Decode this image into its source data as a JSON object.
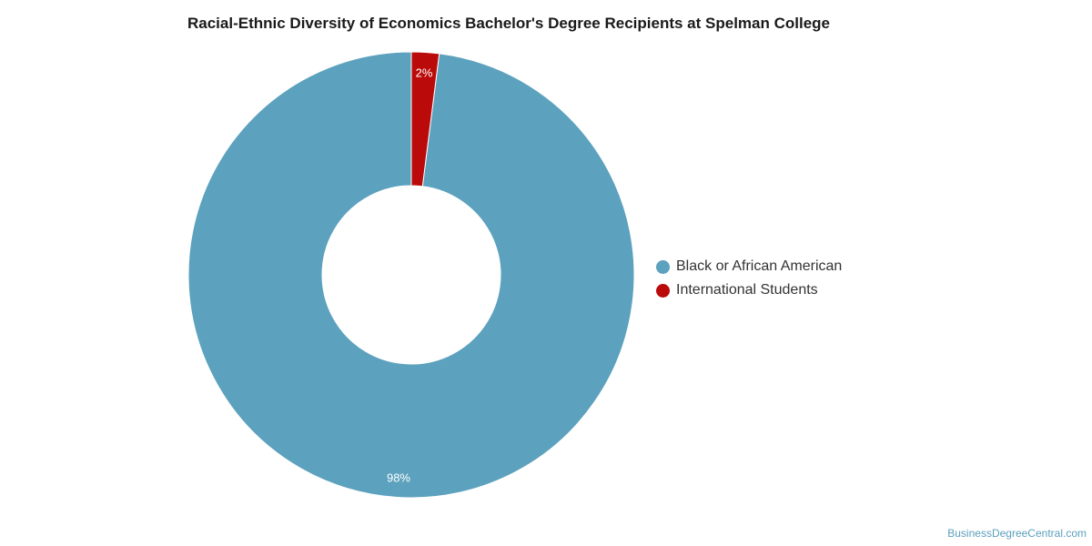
{
  "chart_data": {
    "type": "pie",
    "title": "Racial-Ethnic Diversity of Economics Bachelor's Degree Recipients at Spelman College",
    "donut": true,
    "categories": [
      "Black or African American",
      "International Students"
    ],
    "values": [
      98,
      2
    ],
    "labels": [
      "98%",
      "2%"
    ],
    "colors": [
      "#5ca1bd",
      "#bb0a0a"
    ],
    "legend": "right"
  },
  "source": "BusinessDegreeCentral.com"
}
